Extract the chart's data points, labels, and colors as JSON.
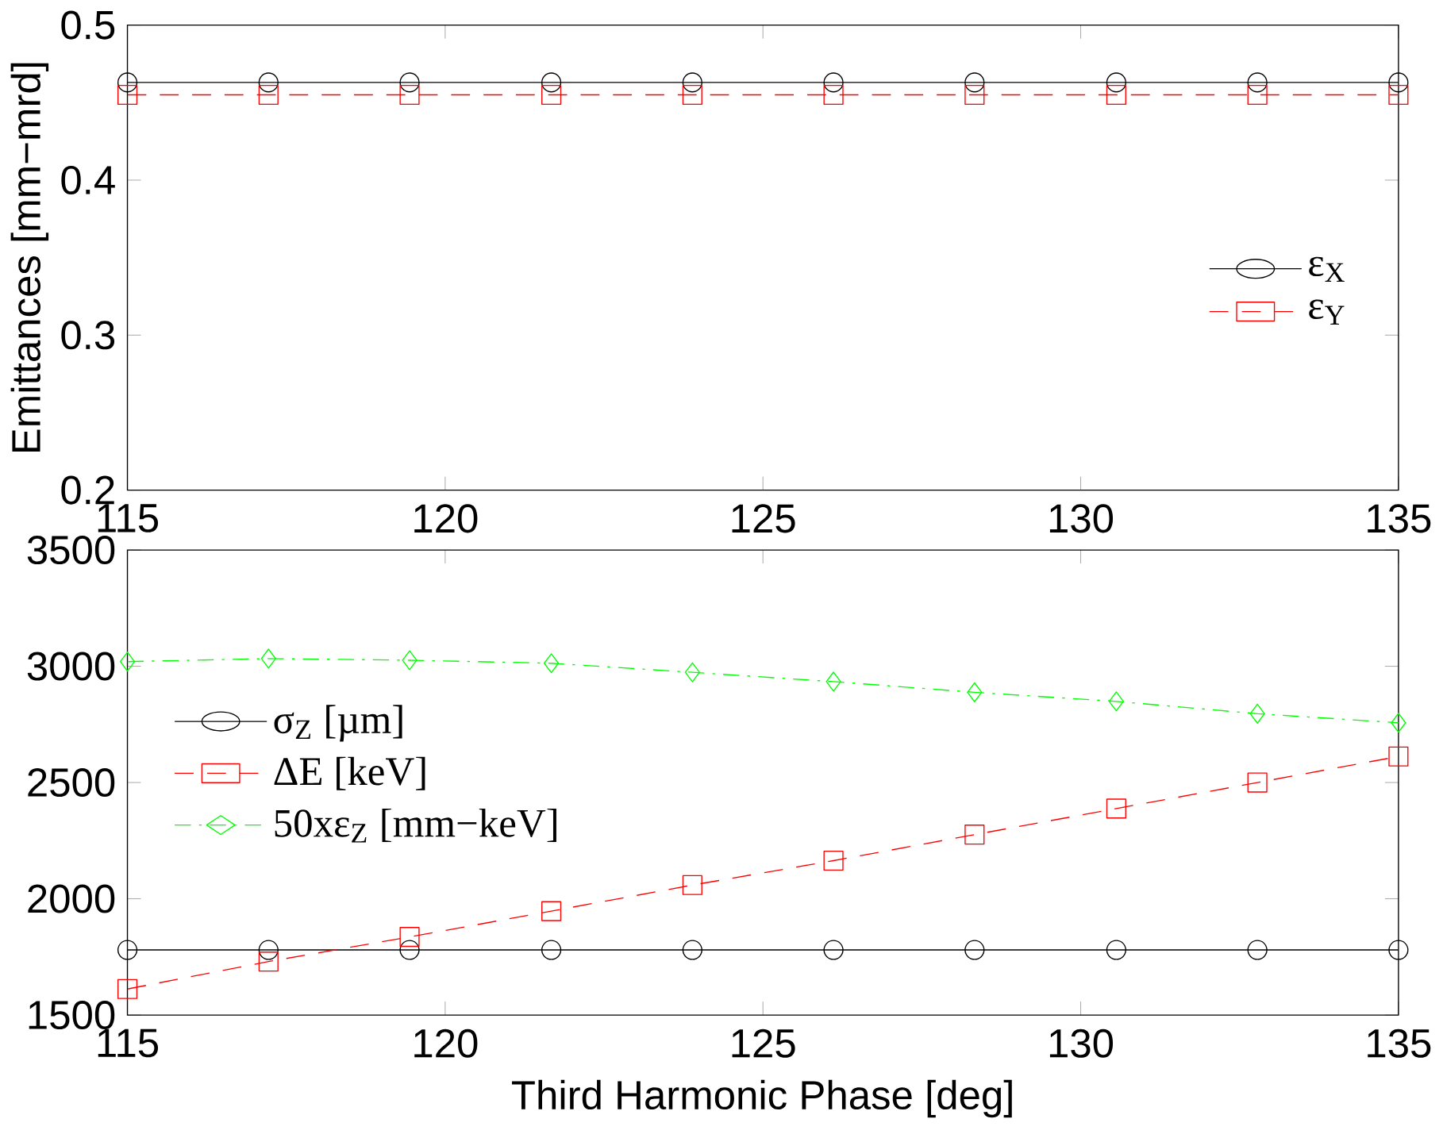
{
  "chart_data": [
    {
      "type": "line",
      "ylabel": "Emittances [mm−mrd]",
      "x": [
        115,
        117.22,
        119.44,
        121.67,
        123.89,
        126.11,
        128.33,
        130.56,
        132.78,
        135
      ],
      "xlim": [
        115,
        135
      ],
      "xticks": [
        115,
        120,
        125,
        130,
        135
      ],
      "ylim": [
        0.2,
        0.5
      ],
      "yticks": [
        0.2,
        0.3,
        0.4,
        0.5
      ],
      "legend": "right",
      "grid": false,
      "series": [
        {
          "name": "ε$_{X}$",
          "color": "#000000",
          "marker": "circle",
          "line_style": "solid",
          "values": [
            0.463,
            0.463,
            0.463,
            0.463,
            0.463,
            0.463,
            0.463,
            0.463,
            0.463,
            0.463
          ]
        },
        {
          "name": "ε$_{Y}$",
          "color": "#ff0000",
          "marker": "square",
          "line_style": "dashed",
          "values": [
            0.455,
            0.455,
            0.455,
            0.455,
            0.455,
            0.455,
            0.455,
            0.455,
            0.455,
            0.455
          ]
        }
      ]
    },
    {
      "type": "line",
      "xlabel": "Third Harmonic Phase [deg]",
      "x": [
        115,
        117.22,
        119.44,
        121.67,
        123.89,
        126.11,
        128.33,
        130.56,
        132.78,
        135
      ],
      "xlim": [
        115,
        135
      ],
      "xticks": [
        115,
        120,
        125,
        130,
        135
      ],
      "ylim": [
        1500,
        3500
      ],
      "yticks": [
        1500,
        2000,
        2500,
        3000,
        3500
      ],
      "legend": "left",
      "grid": false,
      "series": [
        {
          "name": "σ$_{Z}$ [µm]",
          "color": "#000000",
          "marker": "circle",
          "line_style": "solid",
          "values": [
            1780,
            1780,
            1780,
            1780,
            1780,
            1780,
            1780,
            1780,
            1780,
            1780
          ]
        },
        {
          "name": "ΔE [keV]",
          "color": "#ff0000",
          "marker": "square",
          "line_style": "dashed",
          "values": [
            1612,
            1730,
            1836,
            1947,
            2059,
            2164,
            2276,
            2388,
            2500,
            2612
          ]
        },
        {
          "name": "50xε$_{Z}$ [mm−keV]",
          "color": "#00ff00",
          "marker": "diamond",
          "line_style": "dashdot",
          "values": [
            3020,
            3033,
            3026,
            3013,
            2974,
            2934,
            2888,
            2849,
            2796,
            2757
          ]
        }
      ]
    }
  ]
}
